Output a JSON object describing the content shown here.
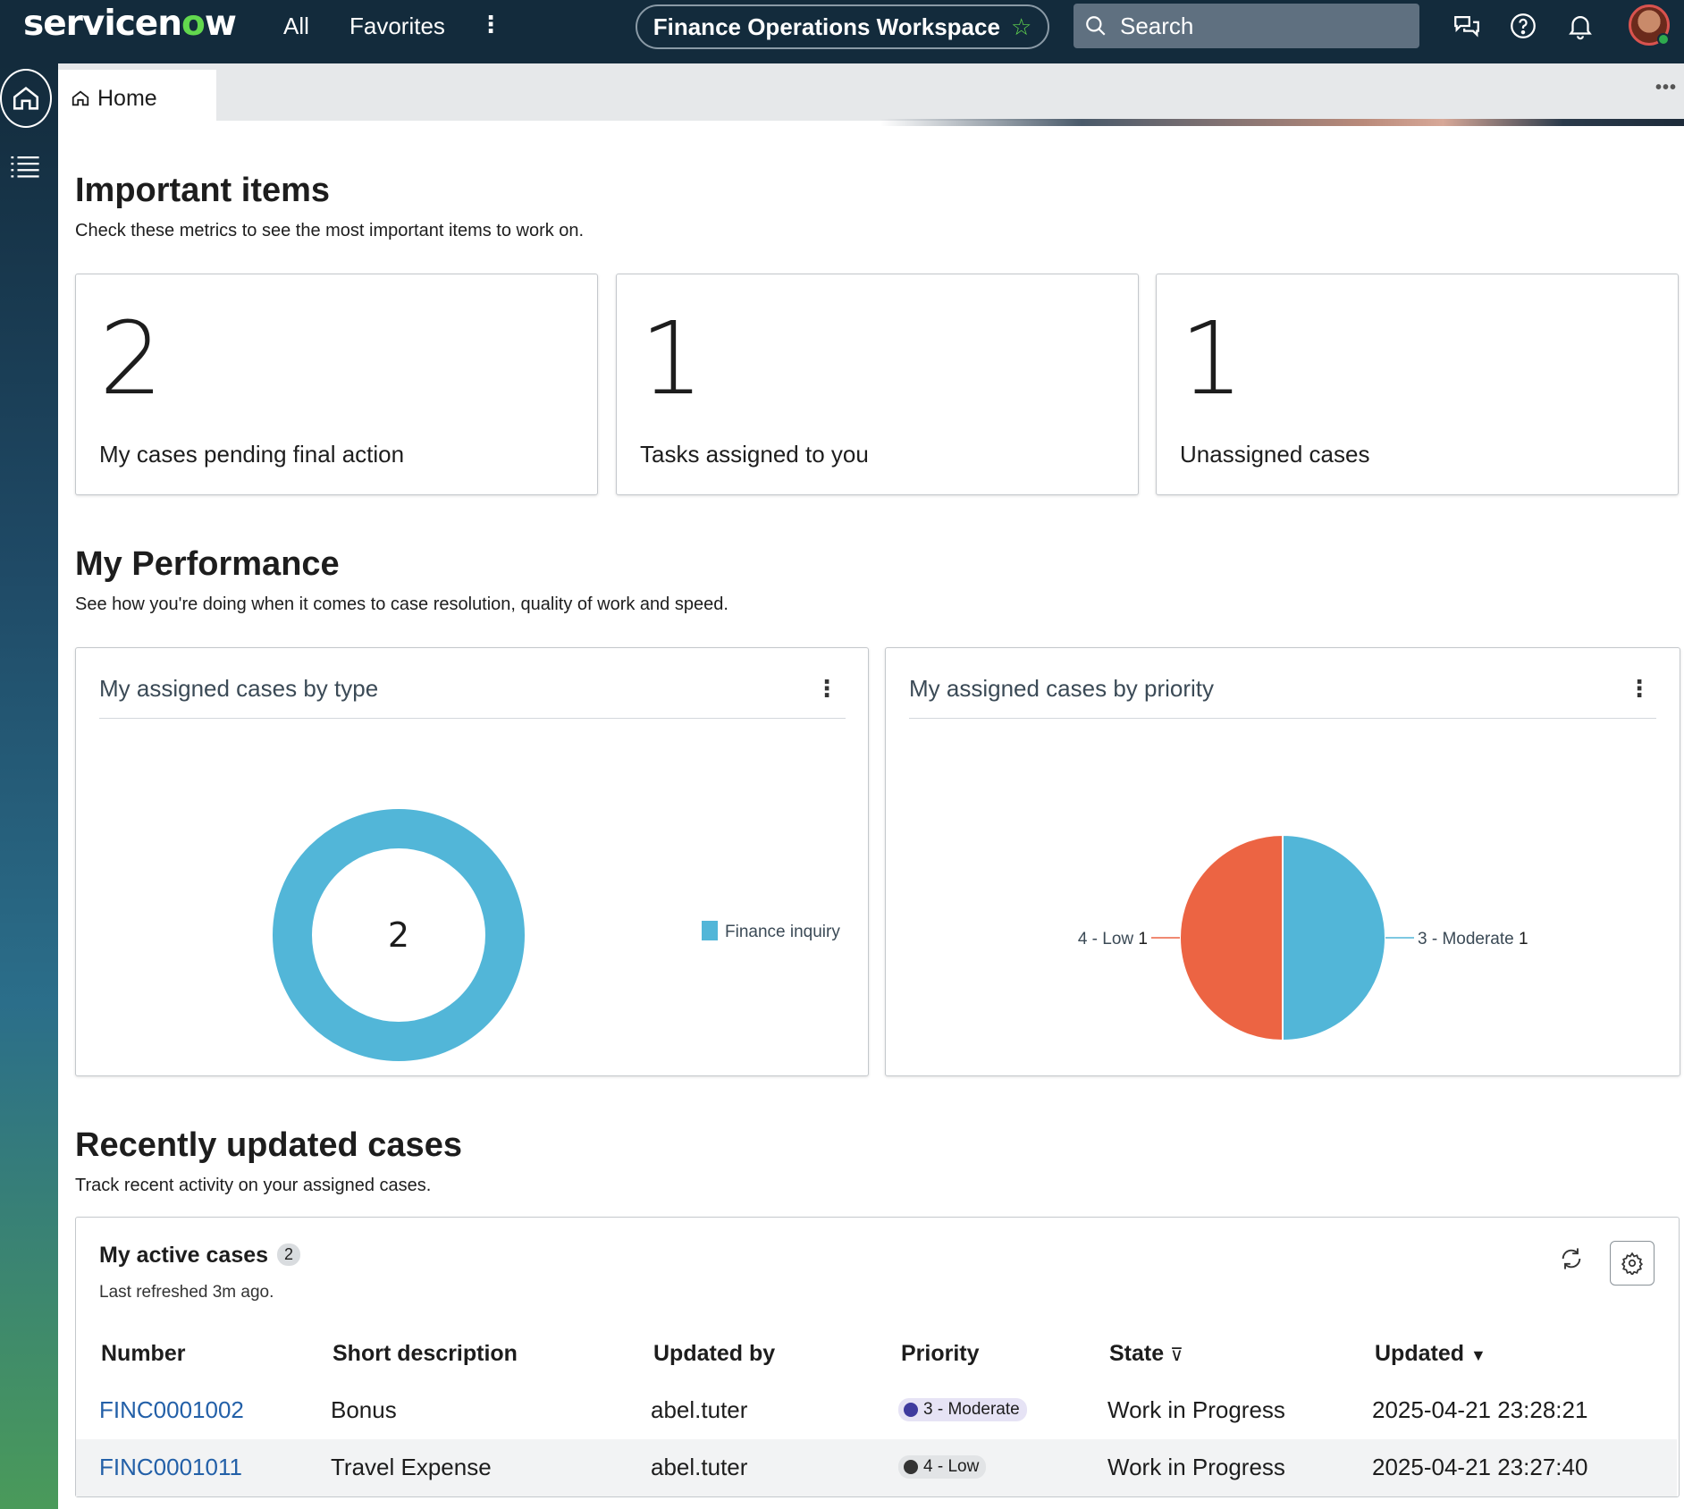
{
  "topbar": {
    "logo_prefix": "servicen",
    "logo_o": "o",
    "logo_suffix": "w",
    "all_label": "All",
    "favorites_label": "Favorites",
    "more_label": "⋮",
    "workspace_title": "Finance Operations Workspace",
    "search_placeholder": "Search"
  },
  "tabs": {
    "home_label": "Home",
    "more_label": "•••"
  },
  "important": {
    "title": "Important items",
    "subtitle": "Check these metrics to see the most important items to work on.",
    "metrics": [
      {
        "value": "2",
        "label": "My cases pending final action"
      },
      {
        "value": "1",
        "label": "Tasks assigned to you"
      },
      {
        "value": "1",
        "label": "Unassigned cases"
      }
    ]
  },
  "performance": {
    "title": "My Performance",
    "subtitle": "See how you're doing when it comes to case resolution, quality of work and speed.",
    "by_type": {
      "title": "My assigned cases by type",
      "menu": "⋮"
    },
    "by_priority": {
      "title": "My assigned cases by priority",
      "menu": "⋮"
    }
  },
  "chart_data": [
    {
      "type": "pie",
      "title": "My assigned cases by type",
      "center_label": "2",
      "categories": [
        "Finance inquiry"
      ],
      "values": [
        2
      ],
      "colors": [
        "#52b6d8"
      ],
      "legend_position": "right"
    },
    {
      "type": "pie",
      "title": "My assigned cases by priority",
      "categories": [
        "3 - Moderate",
        "4 - Low"
      ],
      "values": [
        1,
        1
      ],
      "colors": [
        "#52b6d8",
        "#ec6443"
      ]
    }
  ],
  "recent": {
    "title": "Recently updated cases",
    "subtitle": "Track recent activity on your assigned cases.",
    "list_title": "My active cases",
    "list_count": "2",
    "last_refreshed": "Last refreshed 3m ago.",
    "columns": [
      "Number",
      "Short description",
      "Updated by",
      "Priority",
      "State",
      "Updated"
    ],
    "rows": [
      {
        "number": "FINC0001002",
        "description": "Bonus",
        "updated_by": "abel.tuter",
        "priority": "3 - Moderate",
        "priority_color": "#3f3b9e",
        "priority_bg": "#e6e3f5",
        "state": "Work in Progress",
        "updated": "2025-04-21 23:28:21"
      },
      {
        "number": "FINC0001011",
        "description": "Travel Expense",
        "updated_by": "abel.tuter",
        "priority": "4 - Low",
        "priority_color": "#333333",
        "priority_bg": "#e2e4e6",
        "state": "Work in Progress",
        "updated": "2025-04-21 23:27:40"
      }
    ]
  },
  "colors": {
    "topbar": "#132b3c",
    "brand_green": "#62d84e",
    "link": "#2360a8",
    "chart_blue": "#52b6d8",
    "chart_orange": "#ec6443"
  }
}
